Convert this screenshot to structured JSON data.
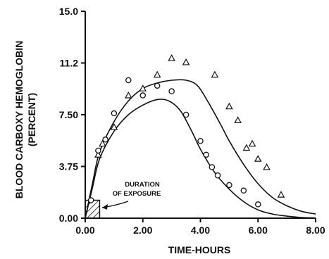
{
  "chart_data": {
    "type": "scatter",
    "title": "",
    "xlabel": "TIME-HOURS",
    "ylabel": [
      "BLOOD CARBOXY HEMOGLOBIN",
      "(PERCENT)"
    ],
    "xlim": [
      0,
      8
    ],
    "ylim": [
      0,
      15
    ],
    "x_ticks": [
      "0.00",
      "2.00",
      "4.00",
      "6.00",
      "8.00"
    ],
    "y_ticks": [
      "0.00",
      "3.75",
      "7.50",
      "11.2",
      "15.0"
    ],
    "grid": false,
    "legend": "none",
    "annotation": {
      "lines": [
        "DURATION",
        "OF EXPOSURE"
      ]
    },
    "exposure_interval": {
      "x": [
        0,
        0.5
      ],
      "y": [
        0,
        1.3
      ],
      "fill": "hatched"
    },
    "series": [
      {
        "marker": "triangle",
        "points": [
          [
            0.45,
            4.6
          ],
          [
            0.6,
            5.4
          ],
          [
            1.0,
            6.6
          ],
          [
            1.5,
            8.9
          ],
          [
            2.0,
            9.4
          ],
          [
            2.5,
            10.4
          ],
          [
            3.0,
            11.6
          ],
          [
            3.5,
            11.3
          ],
          [
            4.5,
            10.4
          ],
          [
            5.0,
            8.1
          ],
          [
            5.3,
            7.1
          ],
          [
            5.6,
            5.1
          ],
          [
            5.8,
            5.4
          ],
          [
            6.0,
            4.3
          ],
          [
            6.3,
            3.7
          ],
          [
            6.8,
            1.7
          ]
        ]
      },
      {
        "marker": "circle",
        "points": [
          [
            0.2,
            1.3
          ],
          [
            0.45,
            4.9
          ],
          [
            0.7,
            5.7
          ],
          [
            1.0,
            7.6
          ],
          [
            1.5,
            10.0
          ],
          [
            2.0,
            8.9
          ],
          [
            2.5,
            9.6
          ],
          [
            3.0,
            9.2
          ],
          [
            3.5,
            7.5
          ],
          [
            4.0,
            5.6
          ],
          [
            4.2,
            4.6
          ],
          [
            4.4,
            3.7
          ],
          [
            4.6,
            3.1
          ],
          [
            5.0,
            2.4
          ],
          [
            5.5,
            2.0
          ],
          [
            6.0,
            1.0
          ]
        ]
      },
      {
        "marker": "line",
        "points": [
          [
            0.0,
            0.0
          ],
          [
            0.25,
            2.5
          ],
          [
            0.5,
            4.8
          ],
          [
            1.0,
            7.0
          ],
          [
            1.5,
            8.5
          ],
          [
            2.0,
            9.4
          ],
          [
            2.5,
            9.8
          ],
          [
            3.0,
            10.0
          ],
          [
            3.5,
            10.0
          ],
          [
            3.9,
            9.6
          ],
          [
            4.3,
            8.3
          ],
          [
            4.7,
            6.8
          ],
          [
            5.0,
            5.6
          ],
          [
            5.5,
            3.9
          ],
          [
            6.0,
            2.5
          ],
          [
            6.5,
            1.5
          ],
          [
            7.0,
            0.9
          ],
          [
            7.5,
            0.5
          ],
          [
            8.0,
            0.3
          ]
        ]
      },
      {
        "marker": "line",
        "points": [
          [
            0.0,
            0.0
          ],
          [
            0.25,
            2.2
          ],
          [
            0.5,
            4.3
          ],
          [
            1.0,
            6.3
          ],
          [
            1.5,
            7.5
          ],
          [
            2.0,
            8.2
          ],
          [
            2.5,
            8.6
          ],
          [
            2.9,
            8.5
          ],
          [
            3.3,
            7.8
          ],
          [
            3.7,
            6.3
          ],
          [
            4.0,
            5.0
          ],
          [
            4.5,
            3.3
          ],
          [
            5.0,
            2.1
          ],
          [
            5.5,
            1.2
          ],
          [
            6.0,
            0.6
          ],
          [
            6.5,
            0.3
          ],
          [
            7.0,
            0.15
          ],
          [
            7.5,
            0.05
          ],
          [
            8.0,
            0.02
          ]
        ]
      }
    ]
  }
}
